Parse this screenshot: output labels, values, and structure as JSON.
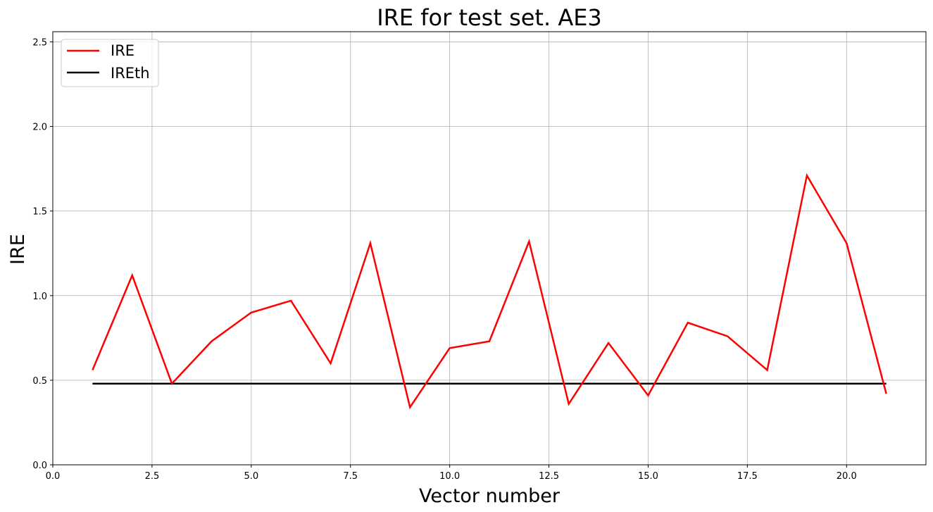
{
  "chart_data": {
    "type": "line",
    "title": "IRE for test set. AE3",
    "xlabel": "Vector number",
    "ylabel": "IRE",
    "xlim": [
      0,
      22
    ],
    "ylim": [
      0,
      2.56
    ],
    "grid": true,
    "legend_placement": "top-left",
    "x_ticks": [
      0,
      2.5,
      5,
      7.5,
      10,
      12.5,
      15,
      17.5,
      20
    ],
    "x_tick_labels": [
      "0.0",
      "2.5",
      "5.0",
      "7.5",
      "10.0",
      "12.5",
      "15.0",
      "17.5",
      "20.0"
    ],
    "y_ticks": [
      0,
      0.5,
      1,
      1.5,
      2,
      2.5
    ],
    "y_tick_labels": [
      "0.0",
      "0.5",
      "1.0",
      "1.5",
      "2.0",
      "2.5"
    ],
    "x": [
      1,
      2,
      3,
      4,
      5,
      6,
      7,
      8,
      9,
      10,
      11,
      12,
      13,
      14,
      15,
      16,
      17,
      18,
      19,
      20,
      21
    ],
    "series": [
      {
        "name": "IRE",
        "color": "#ff0000",
        "values": [
          0.56,
          1.12,
          0.48,
          0.73,
          0.9,
          0.97,
          0.6,
          1.31,
          0.34,
          0.69,
          0.73,
          1.32,
          0.36,
          0.72,
          0.41,
          0.84,
          0.76,
          0.56,
          1.71,
          1.31,
          0.42
        ]
      },
      {
        "name": "IREth",
        "color": "#000000",
        "values": [
          0.48,
          0.48,
          0.48,
          0.48,
          0.48,
          0.48,
          0.48,
          0.48,
          0.48,
          0.48,
          0.48,
          0.48,
          0.48,
          0.48,
          0.48,
          0.48,
          0.48,
          0.48,
          0.48,
          0.48,
          0.48
        ]
      }
    ]
  }
}
